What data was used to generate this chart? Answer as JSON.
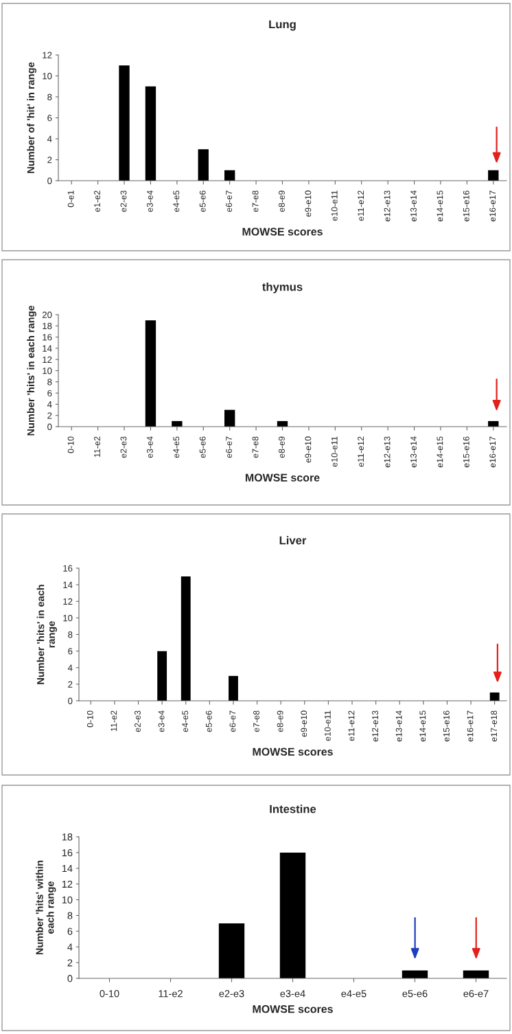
{
  "chart_data": [
    {
      "type": "bar",
      "title": "Lung",
      "xlabel": "MOWSE scores",
      "ylabel": "Number of 'hit' in range",
      "categories": [
        "0-e1",
        "e1-e2",
        "e2-e3",
        "e3-e4",
        "e4-e5",
        "e5-e6",
        "e6-e7",
        "e7-e8",
        "e8-e9",
        "e9-e10",
        "e10-e11",
        "e11-e12",
        "e12-e13",
        "e13-e14",
        "e14-e15",
        "e15-e16",
        "e16-e17"
      ],
      "values": [
        0,
        0,
        11,
        9,
        0,
        3,
        1,
        0,
        0,
        0,
        0,
        0,
        0,
        0,
        0,
        0,
        1
      ],
      "color": "#000000",
      "ylim": [
        0,
        12
      ],
      "yticks": [
        0,
        2,
        4,
        6,
        8,
        10,
        12
      ],
      "grid": false
    },
    {
      "type": "bar",
      "title": "thymus",
      "xlabel": "MOWSE score",
      "ylabel": "Number 'hits' in each range",
      "categories": [
        "0-10",
        "11-e2",
        "e2-e3",
        "e3-e4",
        "e4-e5",
        "e5-e6",
        "e6-e7",
        "e7-e8",
        "e8-e9",
        "e9-e10",
        "e10-e11",
        "e11-e12",
        "e12-e13",
        "e13-e14",
        "e14-e15",
        "e15-e16",
        "e16-e17"
      ],
      "values": [
        0,
        0,
        0,
        19,
        1,
        0,
        3,
        0,
        1,
        0,
        0,
        0,
        0,
        0,
        0,
        0,
        1
      ],
      "color": "#000000",
      "ylim": [
        0,
        20
      ],
      "yticks": [
        0,
        2,
        4,
        6,
        8,
        10,
        12,
        14,
        16,
        18,
        20
      ],
      "grid": false
    },
    {
      "type": "bar",
      "title": "Liver",
      "xlabel": "MOWSE scores",
      "ylabel": "Number 'hits' in each range",
      "categories": [
        "0-10",
        "11-e2",
        "e2-e3",
        "e3-e4",
        "e4-e5",
        "e5-e6",
        "e6-e7",
        "e7-e8",
        "e8-e9",
        "e9-e10",
        "e10-e11",
        "e11-e12",
        "e12-e13",
        "e13-e14",
        "e14-e15",
        "e15-e16",
        "e16-e17",
        "e17-e18"
      ],
      "values": [
        0,
        0,
        0,
        6,
        15,
        0,
        3,
        0,
        0,
        0,
        0,
        0,
        0,
        0,
        0,
        0,
        0,
        1
      ],
      "color": "#000000",
      "ylim": [
        0,
        16
      ],
      "yticks": [
        0,
        2,
        4,
        6,
        8,
        10,
        12,
        14,
        16
      ],
      "grid": false
    },
    {
      "type": "bar",
      "title": "Intestine",
      "xlabel": "MOWSE scores",
      "ylabel": "Number 'hits' within each range",
      "categories": [
        "0-10",
        "11-e2",
        "e2-e3",
        "e3-e4",
        "e4-e5",
        "e5-e6",
        "e6-e7"
      ],
      "values": [
        0,
        0,
        7,
        16,
        0,
        1,
        1
      ],
      "color": "#000000",
      "ylim": [
        0,
        18
      ],
      "yticks": [
        0,
        2,
        4,
        6,
        8,
        10,
        12,
        14,
        16,
        18
      ],
      "grid": false
    }
  ]
}
